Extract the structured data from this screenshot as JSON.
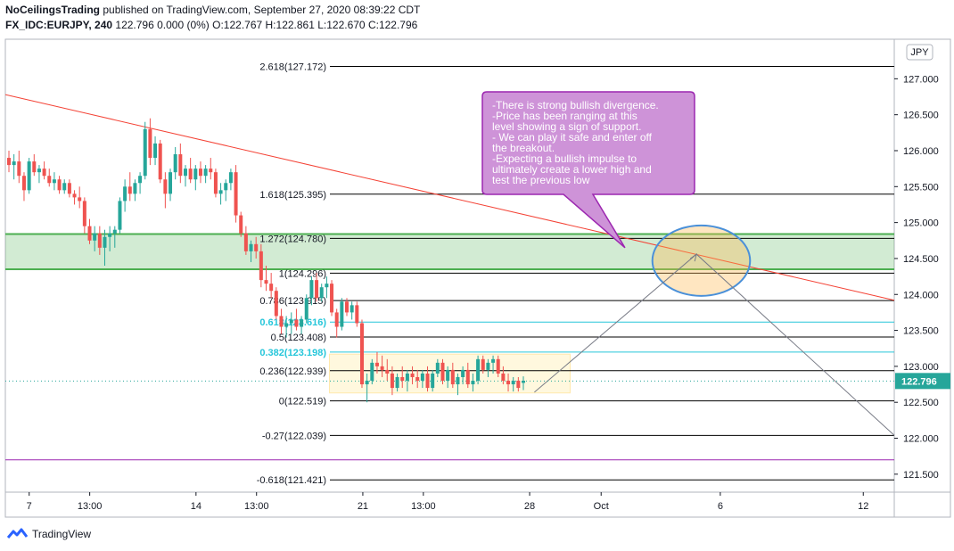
{
  "header": {
    "author": "NoCeilingsTrading",
    "published_text": "published on TradingView.com, September 27, 2020 08:39:22 CDT",
    "symbol": "FX_IDC:EURJPY, 240",
    "quote": "122.796 0.000 (0%) O:122.767 H:122.861 L:122.670 C:122.796"
  },
  "brand": {
    "name": "TradingView",
    "icon": "tradingview-logo-icon"
  },
  "chart_data": {
    "type": "candlestick",
    "currency_label": "JPY",
    "last_price": "122.796",
    "y_range": [
      121.25,
      127.55
    ],
    "y_ticks": [
      "127.000",
      "126.500",
      "126.000",
      "125.500",
      "125.000",
      "124.500",
      "124.000",
      "123.500",
      "123.000",
      "122.500",
      "122.000",
      "121.500"
    ],
    "y_tick_values": [
      127.0,
      126.5,
      126.0,
      125.5,
      125.0,
      124.5,
      124.0,
      123.5,
      123.0,
      122.5,
      122.0,
      121.5
    ],
    "x_range_days": [
      6.0,
      43.3
    ],
    "x_ticks": [
      {
        "label": "7",
        "day": 7
      },
      {
        "label": "13:00",
        "day": 9.54
      },
      {
        "label": "14",
        "day": 14
      },
      {
        "label": "13:00",
        "day": 16.54
      },
      {
        "label": "21",
        "day": 21
      },
      {
        "label": "13:00",
        "day": 23.54
      },
      {
        "label": "28",
        "day": 28
      },
      {
        "label": "Oct",
        "day": 31
      },
      {
        "label": "6",
        "day": 36
      },
      {
        "label": "12",
        "day": 42
      }
    ],
    "fib_levels": [
      {
        "label": "2.618(127.172)",
        "value": 127.172,
        "color": "#000000"
      },
      {
        "label": "1.618(125.395)",
        "value": 125.395,
        "color": "#000000"
      },
      {
        "label": "1.272(124.780)",
        "value": 124.78,
        "color": "#000000"
      },
      {
        "label": "1(124.296)",
        "value": 124.296,
        "color": "#000000"
      },
      {
        "label": "0.786(123.915)",
        "value": 123.915,
        "color": "#000000"
      },
      {
        "label": "0.618(123.616)",
        "value": 123.616,
        "color": "#26c6da"
      },
      {
        "label": "0.5(123.408)",
        "value": 123.408,
        "color": "#000000"
      },
      {
        "label": "0.382(123.198)",
        "value": 123.198,
        "color": "#26c6da"
      },
      {
        "label": "0.236(122.939)",
        "value": 122.939,
        "color": "#000000"
      },
      {
        "label": "0(122.519)",
        "value": 122.519,
        "color": "#000000"
      },
      {
        "label": "-0.27(122.039)",
        "value": 122.039,
        "color": "#000000"
      },
      {
        "label": "-0.618(121.421)",
        "value": 121.421,
        "color": "#000000"
      }
    ],
    "support_zone": {
      "top": 124.84,
      "bottom": 124.35,
      "color": "#4caf50"
    },
    "trendline": {
      "start": {
        "day": 6.0,
        "price": 126.78
      },
      "end": {
        "day": 43.3,
        "price": 123.92
      },
      "color": "#f44336"
    },
    "purple_line": {
      "price": 121.7,
      "color": "#9c27b0"
    },
    "projection_path": [
      {
        "day": 28.2,
        "price": 122.64
      },
      {
        "day": 35.0,
        "price": 124.56
      },
      {
        "day": 43.3,
        "price": 122.04
      }
    ],
    "range_box": {
      "start_day": 19.6,
      "end_day": 29.7,
      "top": 123.17,
      "bottom": 122.63
    },
    "ellipse": {
      "day": 35.2,
      "price": 124.47,
      "rx_days": 2.05,
      "ry_price": 0.49
    },
    "annotation": {
      "lines": [
        "-There is strong bullish divergence.",
        "-Price has  been ranging at this",
        "level showing a sign of support.",
        "- We can play it safe and enter off",
        "the breakout.",
        "-Expecting a bullish impulse to",
        "ultimately create a lower high and",
        "test the previous low"
      ],
      "pointer_day": 32.0,
      "pointer_price": 124.65
    },
    "candles": [
      [
        125.9,
        126.0,
        125.7,
        125.8
      ],
      [
        125.8,
        125.95,
        125.6,
        125.85
      ],
      [
        125.85,
        126.0,
        125.55,
        125.65
      ],
      [
        125.65,
        125.7,
        125.3,
        125.45
      ],
      [
        125.45,
        125.9,
        125.4,
        125.85
      ],
      [
        125.85,
        125.95,
        125.65,
        125.7
      ],
      [
        125.7,
        125.8,
        125.55,
        125.75
      ],
      [
        125.75,
        125.85,
        125.6,
        125.65
      ],
      [
        125.65,
        125.75,
        125.5,
        125.55
      ],
      [
        125.55,
        125.7,
        125.45,
        125.6
      ],
      [
        125.6,
        125.65,
        125.4,
        125.45
      ],
      [
        125.45,
        125.6,
        125.4,
        125.55
      ],
      [
        125.55,
        125.6,
        125.35,
        125.4
      ],
      [
        125.4,
        125.45,
        125.25,
        125.35
      ],
      [
        125.35,
        125.5,
        125.2,
        125.3
      ],
      [
        125.3,
        125.35,
        124.85,
        124.95
      ],
      [
        124.95,
        125.05,
        124.7,
        124.75
      ],
      [
        124.75,
        124.95,
        124.6,
        124.85
      ],
      [
        124.85,
        124.95,
        124.55,
        124.65
      ],
      [
        124.65,
        124.9,
        124.4,
        124.8
      ],
      [
        124.8,
        124.95,
        124.6,
        124.85
      ],
      [
        124.85,
        124.95,
        124.65,
        124.9
      ],
      [
        124.9,
        125.35,
        124.85,
        125.3
      ],
      [
        125.3,
        125.6,
        125.15,
        125.5
      ],
      [
        125.5,
        125.7,
        125.3,
        125.4
      ],
      [
        125.4,
        125.6,
        125.3,
        125.55
      ],
      [
        125.55,
        125.7,
        125.4,
        125.65
      ],
      [
        125.65,
        126.4,
        125.6,
        126.3
      ],
      [
        126.3,
        126.45,
        125.8,
        125.9
      ],
      [
        125.9,
        126.2,
        125.8,
        126.1
      ],
      [
        126.1,
        126.15,
        125.55,
        125.6
      ],
      [
        125.6,
        125.7,
        125.2,
        125.4
      ],
      [
        125.4,
        125.75,
        125.3,
        125.7
      ],
      [
        125.7,
        126.05,
        125.6,
        125.95
      ],
      [
        125.95,
        126.1,
        125.55,
        125.65
      ],
      [
        125.65,
        125.8,
        125.5,
        125.75
      ],
      [
        125.75,
        125.9,
        125.55,
        125.6
      ],
      [
        125.6,
        125.8,
        125.45,
        125.75
      ],
      [
        125.75,
        125.85,
        125.55,
        125.65
      ],
      [
        125.65,
        125.8,
        125.55,
        125.75
      ],
      [
        125.75,
        125.9,
        125.6,
        125.7
      ],
      [
        125.7,
        125.75,
        125.35,
        125.4
      ],
      [
        125.4,
        125.55,
        125.25,
        125.45
      ],
      [
        125.45,
        125.6,
        125.3,
        125.55
      ],
      [
        125.55,
        125.75,
        125.45,
        125.7
      ],
      [
        125.7,
        125.8,
        125.0,
        125.1
      ],
      [
        125.1,
        125.15,
        124.8,
        124.85
      ],
      [
        124.85,
        124.95,
        124.55,
        124.6
      ],
      [
        124.6,
        124.75,
        124.45,
        124.7
      ],
      [
        124.7,
        124.8,
        124.5,
        124.6
      ],
      [
        124.6,
        124.7,
        124.1,
        124.2
      ],
      [
        124.2,
        124.4,
        124.05,
        124.15
      ],
      [
        124.15,
        124.3,
        123.95,
        124.05
      ],
      [
        124.05,
        124.1,
        123.65,
        123.7
      ],
      [
        123.7,
        123.8,
        123.45,
        123.55
      ],
      [
        123.55,
        123.7,
        123.4,
        123.6
      ],
      [
        123.6,
        123.75,
        123.45,
        123.65
      ],
      [
        123.65,
        123.8,
        123.5,
        123.55
      ],
      [
        123.55,
        123.7,
        123.45,
        123.65
      ],
      [
        123.65,
        124.0,
        123.6,
        123.95
      ],
      [
        123.95,
        124.25,
        123.85,
        124.2
      ],
      [
        124.2,
        124.3,
        123.9,
        123.95
      ],
      [
        123.95,
        124.15,
        123.9,
        124.1
      ],
      [
        124.1,
        124.25,
        123.95,
        124.15
      ],
      [
        124.15,
        124.2,
        123.7,
        123.75
      ],
      [
        123.75,
        123.8,
        123.4,
        123.55
      ],
      [
        123.55,
        123.95,
        123.5,
        123.9
      ],
      [
        123.9,
        123.95,
        123.7,
        123.75
      ],
      [
        123.75,
        123.9,
        123.65,
        123.85
      ],
      [
        123.85,
        123.9,
        123.55,
        123.6
      ],
      [
        123.6,
        123.65,
        122.7,
        122.75
      ],
      [
        122.75,
        122.9,
        122.5,
        122.8
      ],
      [
        122.8,
        123.1,
        122.75,
        123.05
      ],
      [
        123.05,
        123.2,
        122.9,
        123.0
      ],
      [
        123.0,
        123.15,
        122.85,
        122.95
      ],
      [
        122.95,
        123.1,
        122.8,
        122.9
      ],
      [
        122.9,
        123.0,
        122.6,
        122.7
      ],
      [
        122.7,
        122.9,
        122.65,
        122.85
      ],
      [
        122.85,
        123.0,
        122.7,
        122.8
      ],
      [
        122.8,
        122.95,
        122.65,
        122.9
      ],
      [
        122.9,
        123.0,
        122.75,
        122.85
      ],
      [
        122.85,
        122.95,
        122.7,
        122.8
      ],
      [
        122.8,
        122.95,
        122.7,
        122.9
      ],
      [
        122.9,
        123.0,
        122.65,
        122.7
      ],
      [
        122.7,
        122.95,
        122.65,
        122.9
      ],
      [
        122.9,
        123.1,
        122.85,
        123.05
      ],
      [
        123.05,
        123.1,
        122.75,
        122.8
      ],
      [
        122.8,
        123.0,
        122.7,
        122.95
      ],
      [
        122.95,
        123.05,
        122.7,
        122.75
      ],
      [
        122.75,
        122.9,
        122.6,
        122.85
      ],
      [
        122.85,
        123.0,
        122.75,
        122.95
      ],
      [
        122.95,
        123.05,
        122.7,
        122.75
      ],
      [
        122.75,
        122.9,
        122.65,
        122.8
      ],
      [
        122.8,
        123.15,
        122.75,
        123.1
      ],
      [
        123.1,
        123.15,
        122.9,
        122.95
      ],
      [
        122.95,
        123.1,
        122.85,
        123.05
      ],
      [
        123.05,
        123.15,
        122.9,
        123.1
      ],
      [
        123.1,
        123.15,
        122.85,
        122.9
      ],
      [
        122.9,
        123.0,
        122.75,
        122.8
      ],
      [
        122.8,
        122.9,
        122.65,
        122.75
      ],
      [
        122.75,
        122.85,
        122.65,
        122.8
      ],
      [
        122.8,
        122.85,
        122.65,
        122.7
      ],
      [
        122.77,
        122.86,
        122.67,
        122.8
      ]
    ]
  }
}
